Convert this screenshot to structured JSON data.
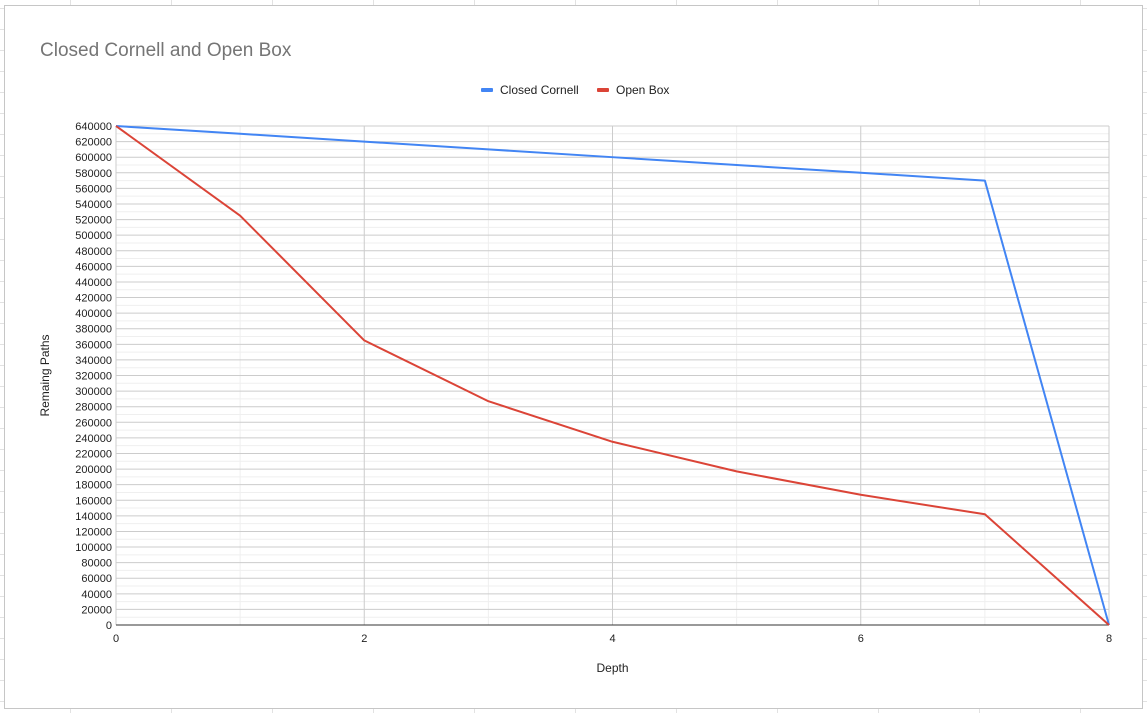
{
  "chart_data": {
    "type": "line",
    "title": "Closed Cornell and Open Box",
    "xlabel": "Depth",
    "ylabel": "Remaing Paths",
    "xlim": [
      0,
      8
    ],
    "ylim": [
      0,
      640000
    ],
    "x_ticks": [
      "0",
      "2",
      "4",
      "6",
      "8"
    ],
    "y_ticks": [
      "0",
      "20000",
      "40000",
      "60000",
      "80000",
      "100000",
      "120000",
      "140000",
      "160000",
      "180000",
      "200000",
      "220000",
      "240000",
      "260000",
      "280000",
      "300000",
      "320000",
      "340000",
      "360000",
      "380000",
      "400000",
      "420000",
      "440000",
      "460000",
      "480000",
      "500000",
      "520000",
      "540000",
      "560000",
      "580000",
      "600000",
      "620000",
      "640000"
    ],
    "grid": true,
    "legend_position": "top",
    "x": [
      0,
      1,
      2,
      3,
      4,
      5,
      6,
      7,
      8
    ],
    "series": [
      {
        "name": "Closed Cornell",
        "color": "#4285f4",
        "values": [
          640000,
          630000,
          620000,
          610000,
          600000,
          590000,
          580000,
          570000,
          0
        ]
      },
      {
        "name": "Open Box",
        "color": "#db4437",
        "values": [
          640000,
          525000,
          365000,
          287000,
          235000,
          197000,
          167000,
          142000,
          0
        ]
      }
    ]
  }
}
